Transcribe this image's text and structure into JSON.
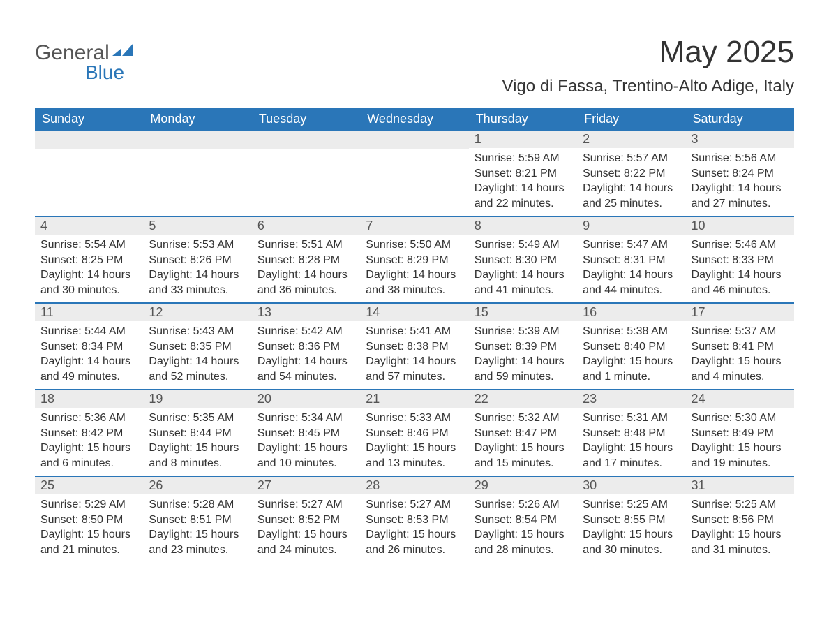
{
  "brand": {
    "part1": "General",
    "part2": "Blue"
  },
  "title": "May 2025",
  "location": "Vigo di Fassa, Trentino-Alto Adige, Italy",
  "colors": {
    "header_bg": "#2a76b8",
    "header_text": "#ffffff",
    "daynum_bg": "#ececec",
    "text": "#333333",
    "border": "#2a76b8",
    "page_bg": "#ffffff"
  },
  "dow": [
    "Sunday",
    "Monday",
    "Tuesday",
    "Wednesday",
    "Thursday",
    "Friday",
    "Saturday"
  ],
  "weeks": [
    [
      {
        "blank": true
      },
      {
        "blank": true
      },
      {
        "blank": true
      },
      {
        "blank": true
      },
      {
        "n": "1",
        "sunrise": "Sunrise: 5:59 AM",
        "sunset": "Sunset: 8:21 PM",
        "day1": "Daylight: 14 hours",
        "day2": "and 22 minutes."
      },
      {
        "n": "2",
        "sunrise": "Sunrise: 5:57 AM",
        "sunset": "Sunset: 8:22 PM",
        "day1": "Daylight: 14 hours",
        "day2": "and 25 minutes."
      },
      {
        "n": "3",
        "sunrise": "Sunrise: 5:56 AM",
        "sunset": "Sunset: 8:24 PM",
        "day1": "Daylight: 14 hours",
        "day2": "and 27 minutes."
      }
    ],
    [
      {
        "n": "4",
        "sunrise": "Sunrise: 5:54 AM",
        "sunset": "Sunset: 8:25 PM",
        "day1": "Daylight: 14 hours",
        "day2": "and 30 minutes."
      },
      {
        "n": "5",
        "sunrise": "Sunrise: 5:53 AM",
        "sunset": "Sunset: 8:26 PM",
        "day1": "Daylight: 14 hours",
        "day2": "and 33 minutes."
      },
      {
        "n": "6",
        "sunrise": "Sunrise: 5:51 AM",
        "sunset": "Sunset: 8:28 PM",
        "day1": "Daylight: 14 hours",
        "day2": "and 36 minutes."
      },
      {
        "n": "7",
        "sunrise": "Sunrise: 5:50 AM",
        "sunset": "Sunset: 8:29 PM",
        "day1": "Daylight: 14 hours",
        "day2": "and 38 minutes."
      },
      {
        "n": "8",
        "sunrise": "Sunrise: 5:49 AM",
        "sunset": "Sunset: 8:30 PM",
        "day1": "Daylight: 14 hours",
        "day2": "and 41 minutes."
      },
      {
        "n": "9",
        "sunrise": "Sunrise: 5:47 AM",
        "sunset": "Sunset: 8:31 PM",
        "day1": "Daylight: 14 hours",
        "day2": "and 44 minutes."
      },
      {
        "n": "10",
        "sunrise": "Sunrise: 5:46 AM",
        "sunset": "Sunset: 8:33 PM",
        "day1": "Daylight: 14 hours",
        "day2": "and 46 minutes."
      }
    ],
    [
      {
        "n": "11",
        "sunrise": "Sunrise: 5:44 AM",
        "sunset": "Sunset: 8:34 PM",
        "day1": "Daylight: 14 hours",
        "day2": "and 49 minutes."
      },
      {
        "n": "12",
        "sunrise": "Sunrise: 5:43 AM",
        "sunset": "Sunset: 8:35 PM",
        "day1": "Daylight: 14 hours",
        "day2": "and 52 minutes."
      },
      {
        "n": "13",
        "sunrise": "Sunrise: 5:42 AM",
        "sunset": "Sunset: 8:36 PM",
        "day1": "Daylight: 14 hours",
        "day2": "and 54 minutes."
      },
      {
        "n": "14",
        "sunrise": "Sunrise: 5:41 AM",
        "sunset": "Sunset: 8:38 PM",
        "day1": "Daylight: 14 hours",
        "day2": "and 57 minutes."
      },
      {
        "n": "15",
        "sunrise": "Sunrise: 5:39 AM",
        "sunset": "Sunset: 8:39 PM",
        "day1": "Daylight: 14 hours",
        "day2": "and 59 minutes."
      },
      {
        "n": "16",
        "sunrise": "Sunrise: 5:38 AM",
        "sunset": "Sunset: 8:40 PM",
        "day1": "Daylight: 15 hours",
        "day2": "and 1 minute."
      },
      {
        "n": "17",
        "sunrise": "Sunrise: 5:37 AM",
        "sunset": "Sunset: 8:41 PM",
        "day1": "Daylight: 15 hours",
        "day2": "and 4 minutes."
      }
    ],
    [
      {
        "n": "18",
        "sunrise": "Sunrise: 5:36 AM",
        "sunset": "Sunset: 8:42 PM",
        "day1": "Daylight: 15 hours",
        "day2": "and 6 minutes."
      },
      {
        "n": "19",
        "sunrise": "Sunrise: 5:35 AM",
        "sunset": "Sunset: 8:44 PM",
        "day1": "Daylight: 15 hours",
        "day2": "and 8 minutes."
      },
      {
        "n": "20",
        "sunrise": "Sunrise: 5:34 AM",
        "sunset": "Sunset: 8:45 PM",
        "day1": "Daylight: 15 hours",
        "day2": "and 10 minutes."
      },
      {
        "n": "21",
        "sunrise": "Sunrise: 5:33 AM",
        "sunset": "Sunset: 8:46 PM",
        "day1": "Daylight: 15 hours",
        "day2": "and 13 minutes."
      },
      {
        "n": "22",
        "sunrise": "Sunrise: 5:32 AM",
        "sunset": "Sunset: 8:47 PM",
        "day1": "Daylight: 15 hours",
        "day2": "and 15 minutes."
      },
      {
        "n": "23",
        "sunrise": "Sunrise: 5:31 AM",
        "sunset": "Sunset: 8:48 PM",
        "day1": "Daylight: 15 hours",
        "day2": "and 17 minutes."
      },
      {
        "n": "24",
        "sunrise": "Sunrise: 5:30 AM",
        "sunset": "Sunset: 8:49 PM",
        "day1": "Daylight: 15 hours",
        "day2": "and 19 minutes."
      }
    ],
    [
      {
        "n": "25",
        "sunrise": "Sunrise: 5:29 AM",
        "sunset": "Sunset: 8:50 PM",
        "day1": "Daylight: 15 hours",
        "day2": "and 21 minutes."
      },
      {
        "n": "26",
        "sunrise": "Sunrise: 5:28 AM",
        "sunset": "Sunset: 8:51 PM",
        "day1": "Daylight: 15 hours",
        "day2": "and 23 minutes."
      },
      {
        "n": "27",
        "sunrise": "Sunrise: 5:27 AM",
        "sunset": "Sunset: 8:52 PM",
        "day1": "Daylight: 15 hours",
        "day2": "and 24 minutes."
      },
      {
        "n": "28",
        "sunrise": "Sunrise: 5:27 AM",
        "sunset": "Sunset: 8:53 PM",
        "day1": "Daylight: 15 hours",
        "day2": "and 26 minutes."
      },
      {
        "n": "29",
        "sunrise": "Sunrise: 5:26 AM",
        "sunset": "Sunset: 8:54 PM",
        "day1": "Daylight: 15 hours",
        "day2": "and 28 minutes."
      },
      {
        "n": "30",
        "sunrise": "Sunrise: 5:25 AM",
        "sunset": "Sunset: 8:55 PM",
        "day1": "Daylight: 15 hours",
        "day2": "and 30 minutes."
      },
      {
        "n": "31",
        "sunrise": "Sunrise: 5:25 AM",
        "sunset": "Sunset: 8:56 PM",
        "day1": "Daylight: 15 hours",
        "day2": "and 31 minutes."
      }
    ]
  ]
}
